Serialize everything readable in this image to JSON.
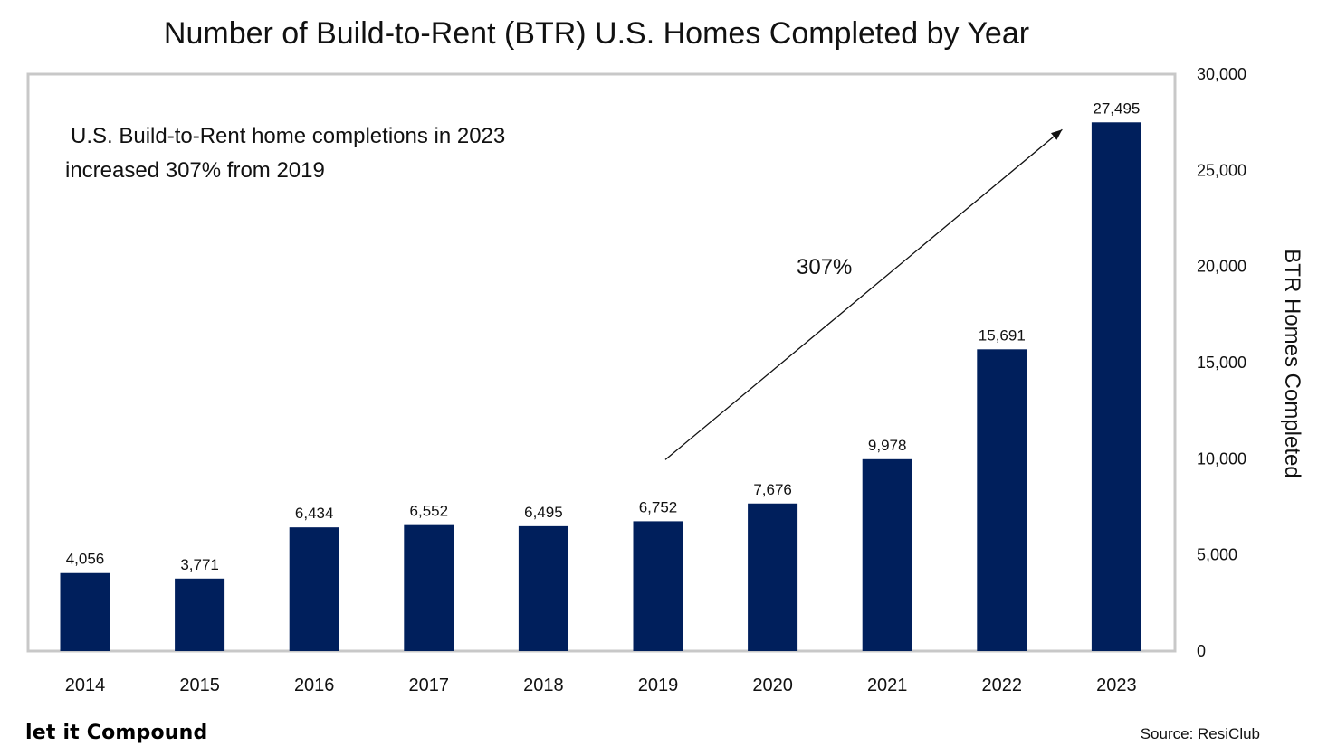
{
  "chart_data": {
    "type": "bar",
    "title": "Number of Build-to-Rent (BTR) U.S. Homes Completed by Year",
    "xlabel": "",
    "ylabel": "BTR Homes Completed",
    "categories": [
      "2014",
      "2015",
      "2016",
      "2017",
      "2018",
      "2019",
      "2020",
      "2021",
      "2022",
      "2023"
    ],
    "values": [
      4056,
      3771,
      6434,
      6552,
      6495,
      6752,
      7676,
      9978,
      15691,
      27495
    ],
    "value_labels": [
      "4,056",
      "3,771",
      "6,434",
      "6,552",
      "6,495",
      "6,752",
      "7,676",
      "9,978",
      "15,691",
      "27,495"
    ],
    "ylim": [
      0,
      30000
    ],
    "yticks": [
      0,
      5000,
      10000,
      15000,
      20000,
      25000,
      30000
    ],
    "ytick_labels": [
      "0",
      "5,000",
      "10,000",
      "15,000",
      "20,000",
      "25,000",
      "30,000"
    ],
    "y_axis_side": "right",
    "grid": false,
    "bar_color": "#001F5C",
    "annotations": {
      "text_line1": "U.S. Build-to-Rent home completions in 2023",
      "text_line2": "increased 307% from 2019",
      "arrow_label": "307%",
      "arrow_from_category": "2019",
      "arrow_to_category": "2023"
    }
  },
  "footer": {
    "brand": "let it Compound",
    "source": "Source: ResiClub"
  }
}
